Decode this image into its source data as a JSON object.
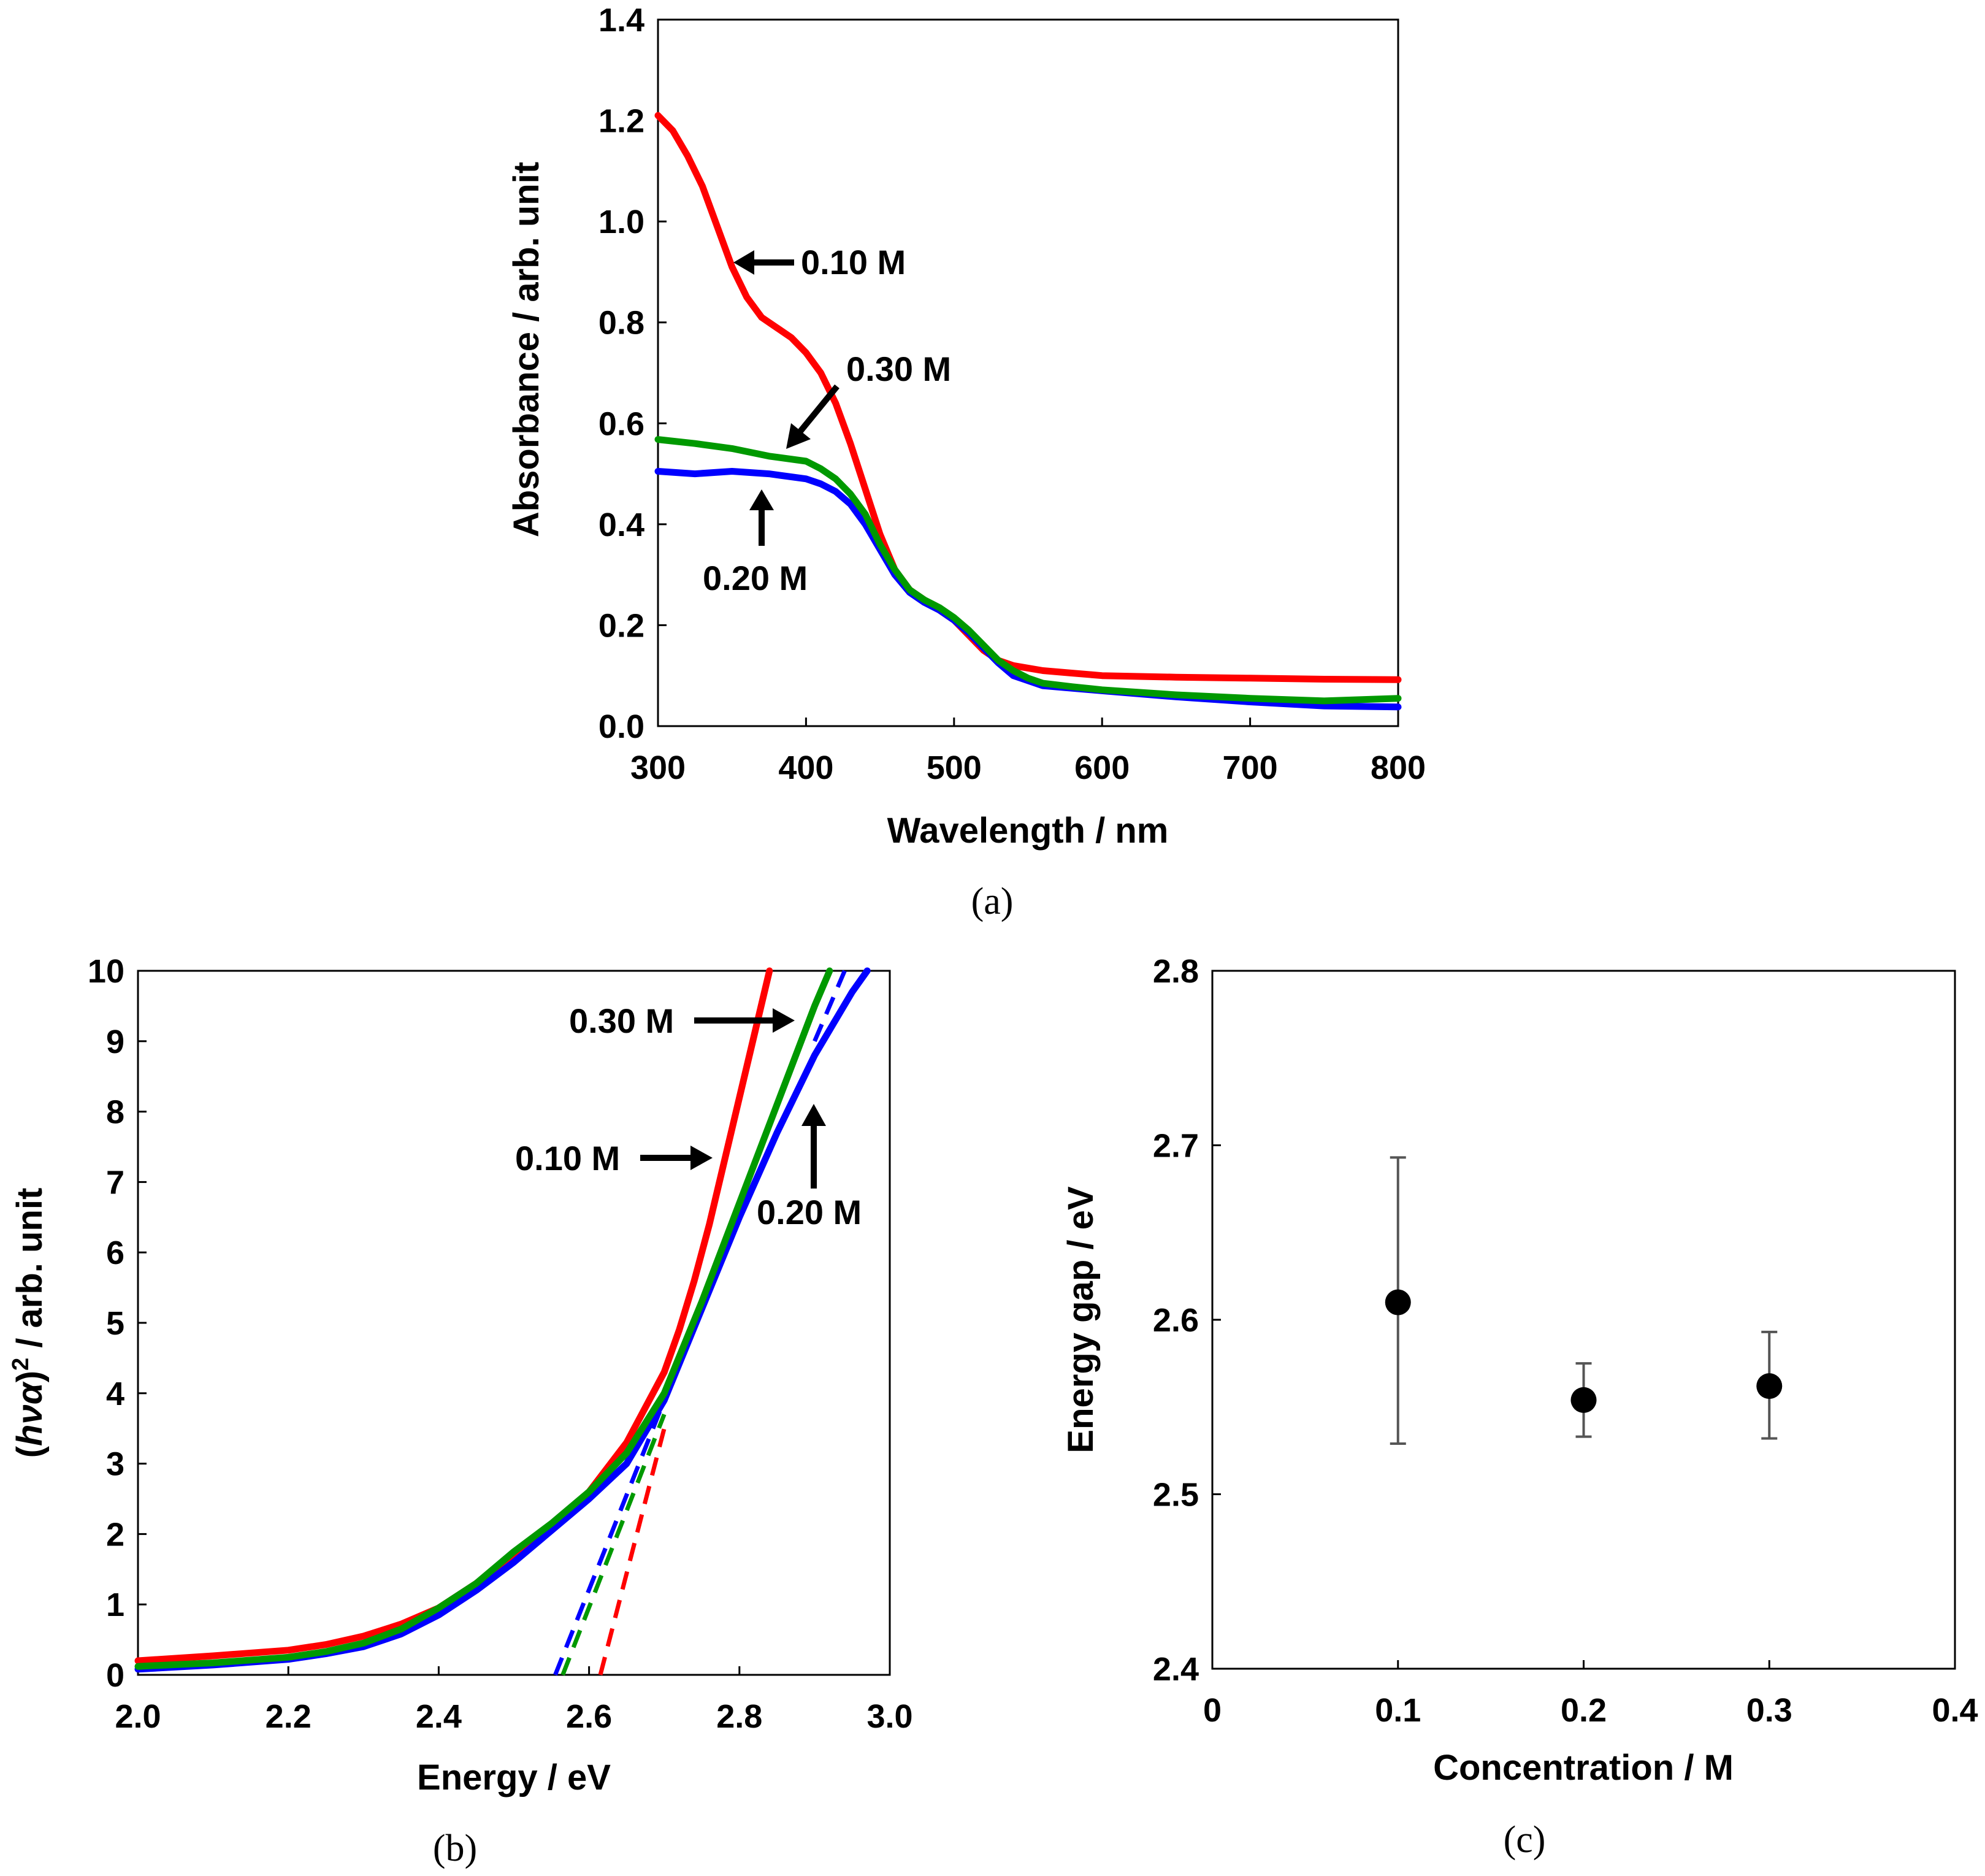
{
  "chart_data": [
    {
      "id": "a",
      "type": "line",
      "caption": "(a)",
      "title": "",
      "xlabel": "Wavelength / nm",
      "ylabel": "Absorbance / arb. unit",
      "xlim": [
        300,
        800
      ],
      "ylim": [
        0.0,
        1.4
      ],
      "xticks": [
        "300",
        "400",
        "500",
        "600",
        "700",
        "800"
      ],
      "yticks": [
        "0.0",
        "0.2",
        "0.4",
        "0.6",
        "0.8",
        "1.0",
        "1.2",
        "1.4"
      ],
      "grid": false,
      "series": [
        {
          "name": "0.10 M",
          "color": "#ff0000",
          "x": [
            300,
            310,
            320,
            330,
            340,
            350,
            360,
            370,
            380,
            390,
            400,
            410,
            420,
            430,
            440,
            450,
            460,
            470,
            480,
            490,
            500,
            510,
            520,
            530,
            540,
            550,
            560,
            580,
            600,
            650,
            700,
            750,
            800
          ],
          "y": [
            1.21,
            1.18,
            1.13,
            1.07,
            0.99,
            0.91,
            0.85,
            0.81,
            0.79,
            0.77,
            0.74,
            0.7,
            0.64,
            0.56,
            0.47,
            0.38,
            0.31,
            0.27,
            0.25,
            0.23,
            0.21,
            0.18,
            0.15,
            0.13,
            0.12,
            0.115,
            0.11,
            0.105,
            0.1,
            0.097,
            0.095,
            0.093,
            0.092
          ]
        },
        {
          "name": "0.20 M",
          "color": "#0000ff",
          "x": [
            300,
            325,
            350,
            375,
            400,
            410,
            420,
            430,
            440,
            450,
            460,
            470,
            480,
            490,
            500,
            510,
            520,
            530,
            540,
            550,
            560,
            580,
            600,
            650,
            700,
            750,
            800
          ],
          "y": [
            0.505,
            0.5,
            0.505,
            0.5,
            0.49,
            0.48,
            0.465,
            0.44,
            0.4,
            0.35,
            0.3,
            0.265,
            0.245,
            0.23,
            0.21,
            0.185,
            0.155,
            0.125,
            0.1,
            0.09,
            0.08,
            0.075,
            0.07,
            0.058,
            0.048,
            0.04,
            0.038
          ]
        },
        {
          "name": "0.30 M",
          "color": "#009900",
          "x": [
            300,
            325,
            350,
            375,
            400,
            410,
            420,
            430,
            440,
            450,
            460,
            470,
            480,
            490,
            500,
            510,
            520,
            530,
            540,
            550,
            560,
            580,
            600,
            650,
            700,
            750,
            800
          ],
          "y": [
            0.568,
            0.56,
            0.55,
            0.535,
            0.525,
            0.51,
            0.49,
            0.46,
            0.42,
            0.36,
            0.31,
            0.27,
            0.25,
            0.235,
            0.215,
            0.19,
            0.16,
            0.13,
            0.11,
            0.095,
            0.085,
            0.078,
            0.072,
            0.062,
            0.055,
            0.05,
            0.055
          ]
        }
      ],
      "annotations": [
        {
          "text": "0.10 M",
          "series": "0.10 M"
        },
        {
          "text": "0.30 M",
          "series": "0.30 M"
        },
        {
          "text": "0.20 M",
          "series": "0.20 M"
        }
      ]
    },
    {
      "id": "b",
      "type": "line",
      "caption": "(b)",
      "title": "",
      "xlabel": "Energy / eV",
      "ylabel_parts": [
        "(",
        "hνα",
        ")",
        "2",
        " / arb. unit"
      ],
      "xlim": [
        2.0,
        3.0
      ],
      "ylim": [
        0,
        10
      ],
      "xticks": [
        "2.0",
        "2.2",
        "2.4",
        "2.6",
        "2.8",
        "3.0"
      ],
      "yticks": [
        "0",
        "1",
        "2",
        "3",
        "4",
        "5",
        "6",
        "7",
        "8",
        "9",
        "10"
      ],
      "grid": false,
      "series": [
        {
          "name": "0.10 M",
          "color": "#ff0000",
          "x": [
            2.0,
            2.1,
            2.2,
            2.25,
            2.3,
            2.35,
            2.4,
            2.45,
            2.5,
            2.55,
            2.6,
            2.65,
            2.7,
            2.72,
            2.74,
            2.76,
            2.78,
            2.8,
            2.82,
            2.84
          ],
          "y": [
            0.2,
            0.27,
            0.35,
            0.43,
            0.55,
            0.72,
            0.95,
            1.3,
            1.7,
            2.1,
            2.6,
            3.3,
            4.3,
            4.9,
            5.6,
            6.4,
            7.3,
            8.2,
            9.1,
            10.0
          ]
        },
        {
          "name": "0.20 M",
          "color": "#0000ff",
          "x": [
            2.0,
            2.1,
            2.2,
            2.25,
            2.3,
            2.35,
            2.4,
            2.45,
            2.5,
            2.55,
            2.6,
            2.65,
            2.7,
            2.75,
            2.8,
            2.85,
            2.9,
            2.95,
            2.97
          ],
          "y": [
            0.08,
            0.14,
            0.22,
            0.3,
            0.4,
            0.58,
            0.85,
            1.2,
            1.6,
            2.05,
            2.5,
            3.0,
            3.9,
            5.2,
            6.5,
            7.7,
            8.8,
            9.7,
            10.0
          ]
        },
        {
          "name": "0.30 M",
          "color": "#009900",
          "x": [
            2.0,
            2.1,
            2.2,
            2.25,
            2.3,
            2.35,
            2.4,
            2.45,
            2.5,
            2.55,
            2.6,
            2.65,
            2.7,
            2.75,
            2.8,
            2.85,
            2.9,
            2.92
          ],
          "y": [
            0.12,
            0.17,
            0.25,
            0.33,
            0.45,
            0.65,
            0.95,
            1.3,
            1.75,
            2.15,
            2.6,
            3.15,
            4.0,
            5.3,
            6.7,
            8.1,
            9.5,
            10.0
          ]
        }
      ],
      "fit_lines": [
        {
          "series": "0.10 M",
          "color": "#ff0000",
          "x": [
            2.615,
            2.7
          ],
          "y": [
            0,
            3.5
          ]
        },
        {
          "series": "0.20 M",
          "color": "#0000ff",
          "x": [
            2.555,
            2.7
          ],
          "y": [
            0,
            3.9
          ]
        },
        {
          "series": "0.20 M",
          "color": "#0000ff",
          "x": [
            2.9,
            2.94
          ],
          "y": [
            9.0,
            10.0
          ]
        },
        {
          "series": "0.30 M",
          "color": "#009900",
          "x": [
            2.565,
            2.7
          ],
          "y": [
            0,
            3.7
          ]
        }
      ],
      "annotations": [
        {
          "text": "0.30 M",
          "series": "0.30 M"
        },
        {
          "text": "0.10 M",
          "series": "0.10 M"
        },
        {
          "text": "0.20 M",
          "series": "0.20 M"
        }
      ]
    },
    {
      "id": "c",
      "type": "scatter",
      "caption": "(c)",
      "title": "",
      "xlabel": "Concentration / M",
      "ylabel": "Energy gap / eV",
      "xlim": [
        0,
        0.4
      ],
      "ylim": [
        2.4,
        2.8
      ],
      "xticks": [
        "0",
        "0.1",
        "0.2",
        "0.3",
        "0.4"
      ],
      "yticks": [
        "2.4",
        "2.5",
        "2.6",
        "2.7",
        "2.8"
      ],
      "grid": false,
      "series": [
        {
          "name": "Energy gap",
          "color": "#000000",
          "x": [
            0.1,
            0.2,
            0.3
          ],
          "y": [
            2.61,
            2.554,
            2.562
          ],
          "err_low": [
            2.529,
            2.533,
            2.532
          ],
          "err_high": [
            2.693,
            2.575,
            2.593
          ]
        }
      ]
    }
  ]
}
